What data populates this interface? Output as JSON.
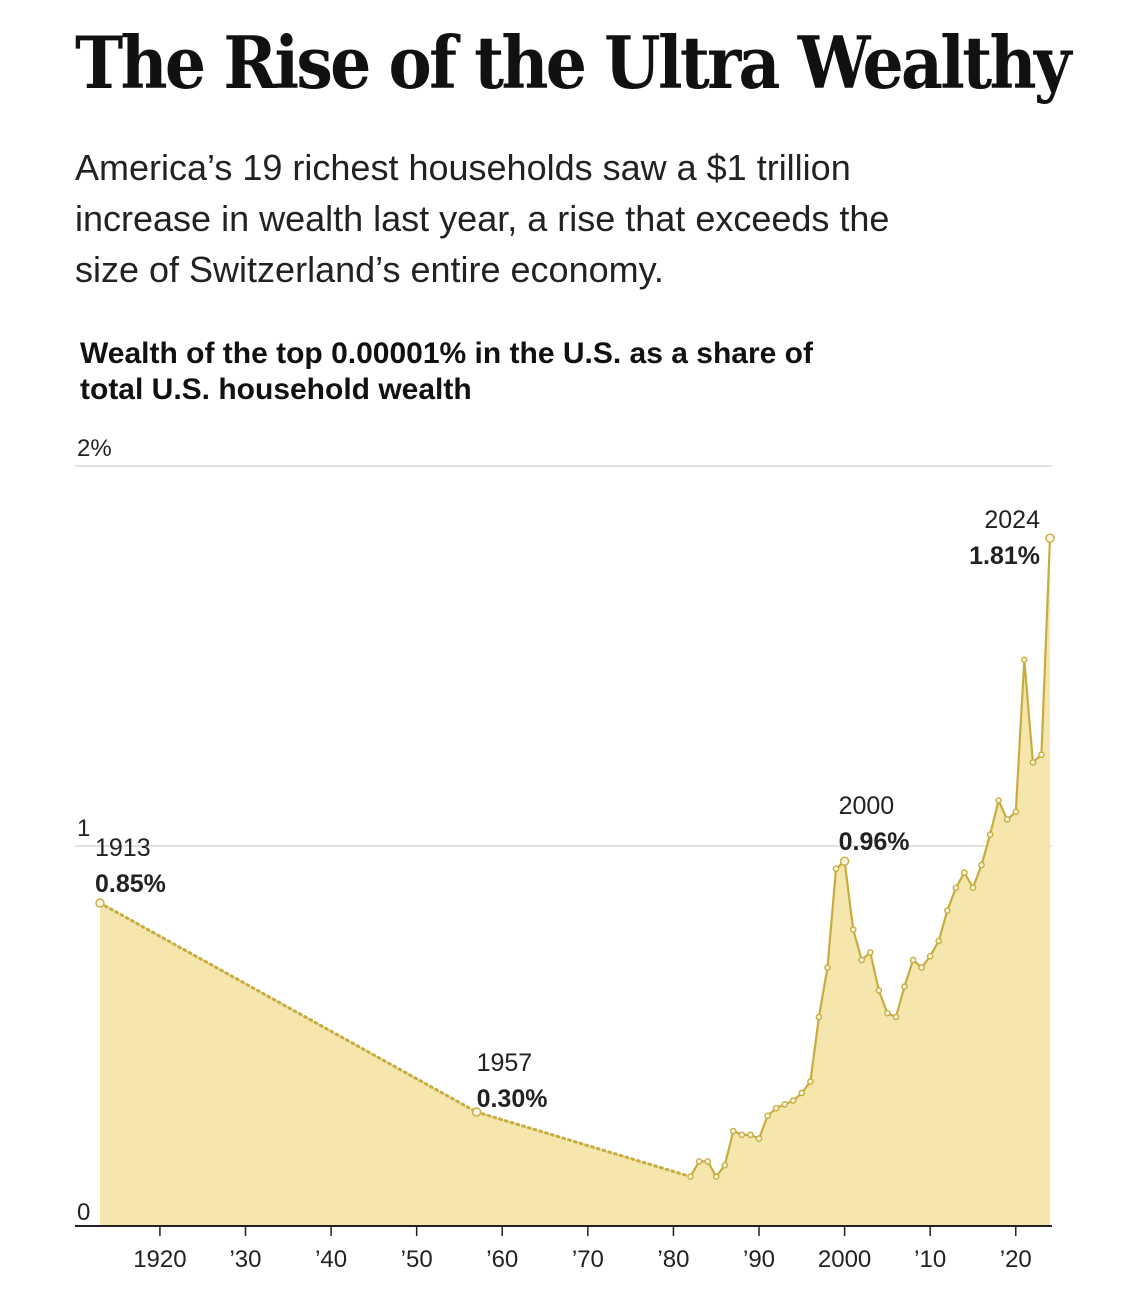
{
  "header": {
    "title": "The Rise of the Ultra Wealthy",
    "dek": "America’s 19 richest households saw a $1 trillion increase in wealth last year, a rise that exceeds the size of Switzerland’s entire economy."
  },
  "chart_data": {
    "type": "area",
    "title": "Wealth of the top 0.00001% in the U.S. as a share of total U.S. household wealth",
    "xlabel": "",
    "ylabel": "",
    "xlim": [
      1913,
      2024
    ],
    "ylim": [
      0,
      2
    ],
    "grid": true,
    "y_ticks": [
      {
        "value": 0,
        "label": "0"
      },
      {
        "value": 1,
        "label": "1"
      },
      {
        "value": 2,
        "label": "2%"
      }
    ],
    "x_ticks": [
      {
        "value": 1920,
        "label": "1920"
      },
      {
        "value": 1930,
        "label": "’30"
      },
      {
        "value": 1940,
        "label": "’40"
      },
      {
        "value": 1950,
        "label": "’50"
      },
      {
        "value": 1960,
        "label": "’60"
      },
      {
        "value": 1970,
        "label": "’70"
      },
      {
        "value": 1980,
        "label": "’80"
      },
      {
        "value": 1990,
        "label": "’90"
      },
      {
        "value": 2000,
        "label": "2000"
      },
      {
        "value": 2010,
        "label": "’10"
      },
      {
        "value": 2020,
        "label": "’20"
      }
    ],
    "colors": {
      "fill": "#f4e6ad",
      "line": "#c9ac3e",
      "marker_fill": "#fbf6df",
      "grid": "#cfcfcf",
      "axis": "#222222"
    },
    "series": [
      {
        "interpolated_segments": [
          [
            1913,
            1957
          ],
          [
            1957,
            1982
          ]
        ],
        "points": [
          [
            1913,
            0.85
          ],
          [
            1957,
            0.3
          ],
          [
            1982,
            0.13
          ],
          [
            1983,
            0.17
          ],
          [
            1984,
            0.17
          ],
          [
            1985,
            0.13
          ],
          [
            1986,
            0.16
          ],
          [
            1987,
            0.25
          ],
          [
            1988,
            0.24
          ],
          [
            1989,
            0.24
          ],
          [
            1990,
            0.23
          ],
          [
            1991,
            0.29
          ],
          [
            1992,
            0.31
          ],
          [
            1993,
            0.32
          ],
          [
            1994,
            0.33
          ],
          [
            1995,
            0.35
          ],
          [
            1996,
            0.38
          ],
          [
            1997,
            0.55
          ],
          [
            1998,
            0.68
          ],
          [
            1999,
            0.94
          ],
          [
            2000,
            0.96
          ],
          [
            2001,
            0.78
          ],
          [
            2002,
            0.7
          ],
          [
            2003,
            0.72
          ],
          [
            2004,
            0.62
          ],
          [
            2005,
            0.56
          ],
          [
            2006,
            0.55
          ],
          [
            2007,
            0.63
          ],
          [
            2008,
            0.7
          ],
          [
            2009,
            0.68
          ],
          [
            2010,
            0.71
          ],
          [
            2011,
            0.75
          ],
          [
            2012,
            0.83
          ],
          [
            2013,
            0.89
          ],
          [
            2014,
            0.93
          ],
          [
            2015,
            0.89
          ],
          [
            2016,
            0.95
          ],
          [
            2017,
            1.03
          ],
          [
            2018,
            1.12
          ],
          [
            2019,
            1.07
          ],
          [
            2020,
            1.09
          ],
          [
            2021,
            1.49
          ],
          [
            2022,
            1.22
          ],
          [
            2023,
            1.24
          ],
          [
            2024,
            1.81
          ]
        ]
      }
    ],
    "annotations": [
      {
        "x": 1913,
        "y": 0.85,
        "year": "1913",
        "value": "0.85%"
      },
      {
        "x": 1957,
        "y": 0.3,
        "year": "1957",
        "value": "0.30%"
      },
      {
        "x": 2000,
        "y": 0.96,
        "year": "2000",
        "value": "0.96%"
      },
      {
        "x": 2024,
        "y": 1.81,
        "year": "2024",
        "value": "1.81%"
      }
    ]
  }
}
